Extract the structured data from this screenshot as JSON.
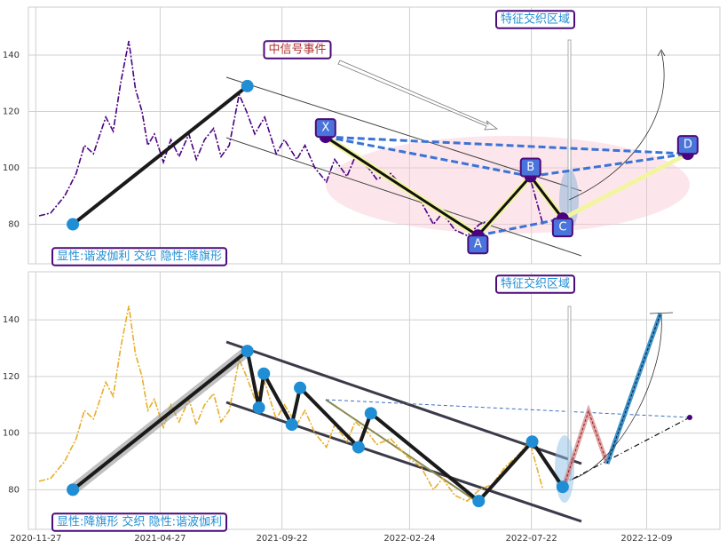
{
  "chart_data": [
    {
      "type": "line",
      "annotations": {
        "event": "中信号事件",
        "zone": "特征交织区域",
        "pattern": "显性:谐波伽利 交织 隐性:降旗形"
      },
      "x": [
        "2020-12-01",
        "2020-12-15",
        "2021-01-01",
        "2021-01-15",
        "2021-01-25",
        "2021-02-05",
        "2021-02-20",
        "2021-03-01",
        "2021-03-10",
        "2021-03-20",
        "2021-03-28",
        "2021-04-05",
        "2021-04-12",
        "2021-04-20",
        "2021-05-01",
        "2021-05-10",
        "2021-05-20",
        "2021-06-01",
        "2021-06-10",
        "2021-06-20",
        "2021-07-01",
        "2021-07-10",
        "2021-07-20",
        "2021-08-01",
        "2021-08-10",
        "2021-08-20",
        "2021-09-01",
        "2021-09-15",
        "2021-09-25",
        "2021-10-10",
        "2021-10-20",
        "2021-11-01",
        "2021-11-15",
        "2021-11-25",
        "2021-12-10",
        "2021-12-20",
        "2022-01-05",
        "2022-01-15",
        "2022-02-01",
        "2022-02-20",
        "2022-03-10",
        "2022-03-25",
        "2022-04-05",
        "2022-04-20",
        "2022-05-05",
        "2022-05-20",
        "2022-06-05",
        "2022-06-20",
        "2022-07-05",
        "2022-07-20",
        "2022-08-05"
      ],
      "series": [
        {
          "color": "#4b0082",
          "values": [
            83,
            84,
            90,
            98,
            108,
            105,
            118,
            113,
            130,
            145,
            128,
            120,
            108,
            112,
            102,
            110,
            104,
            112,
            103,
            110,
            114,
            104,
            108,
            126,
            120,
            112,
            118,
            105,
            110,
            103,
            108,
            100,
            95,
            103,
            97,
            104,
            100,
            96,
            98,
            92,
            88,
            80,
            84,
            78,
            76,
            80,
            82,
            88,
            92,
            97,
            80
          ]
        }
      ],
      "pivots": {
        "x": [
          "2021-01-11",
          "2021-08-11"
        ],
        "values": [
          80,
          129
        ]
      },
      "points": {
        "labels": [
          "X",
          "A",
          "B",
          "C",
          "D"
        ],
        "x": [
          "2021-11-14",
          "2022-05-18",
          "2022-07-21",
          "2022-08-29",
          "2023-01-28"
        ],
        "values": [
          111,
          76,
          97,
          82,
          105
        ]
      },
      "xlim": [
        "2020-11-18",
        "2023-03-08"
      ],
      "ylim": [
        66,
        157
      ],
      "yticks": [
        80,
        100,
        120,
        140
      ],
      "xticks": [
        "2020-11-27",
        "2021-04-27",
        "2021-09-22",
        "2022-02-24",
        "2022-07-22",
        "2022-12-09"
      ],
      "grid": true
    },
    {
      "type": "line",
      "annotations": {
        "zone": "特征交织区域",
        "pattern": "显性:降旗形 交织 隐性:谐波伽利"
      },
      "x": [
        "2020-12-01",
        "2020-12-15",
        "2021-01-01",
        "2021-01-15",
        "2021-01-25",
        "2021-02-05",
        "2021-02-20",
        "2021-03-01",
        "2021-03-10",
        "2021-03-20",
        "2021-03-28",
        "2021-04-05",
        "2021-04-12",
        "2021-04-20",
        "2021-05-01",
        "2021-05-10",
        "2021-05-20",
        "2021-06-01",
        "2021-06-10",
        "2021-06-20",
        "2021-07-01",
        "2021-07-10",
        "2021-07-20",
        "2021-08-01",
        "2021-08-10",
        "2021-08-20",
        "2021-09-01",
        "2021-09-15",
        "2021-09-25",
        "2021-10-10",
        "2021-10-20",
        "2021-11-01",
        "2021-11-15",
        "2021-11-25",
        "2021-12-10",
        "2021-12-20",
        "2022-01-05",
        "2022-01-15",
        "2022-02-01",
        "2022-02-20",
        "2022-03-10",
        "2022-03-25",
        "2022-04-05",
        "2022-04-20",
        "2022-05-05",
        "2022-05-20",
        "2022-06-05",
        "2022-06-20",
        "2022-07-05",
        "2022-07-20",
        "2022-08-05"
      ],
      "series": [
        {
          "color": "#e8ae2a",
          "values": [
            83,
            84,
            90,
            98,
            108,
            105,
            118,
            113,
            130,
            145,
            128,
            120,
            108,
            112,
            102,
            110,
            104,
            112,
            103,
            110,
            114,
            104,
            108,
            126,
            120,
            112,
            118,
            105,
            110,
            103,
            108,
            100,
            95,
            103,
            97,
            104,
            100,
            96,
            98,
            92,
            88,
            80,
            84,
            78,
            76,
            80,
            82,
            88,
            92,
            97,
            80
          ]
        }
      ],
      "pivots": {
        "x": [
          "2021-01-11",
          "2021-08-11",
          "2021-08-25",
          "2021-08-31",
          "2021-10-04",
          "2021-10-14",
          "2021-12-24",
          "2022-01-08",
          "2022-05-19",
          "2022-07-23",
          "2022-08-29"
        ],
        "values": [
          80,
          129,
          109,
          121,
          103,
          116,
          95,
          107,
          76,
          97,
          81
        ]
      },
      "xlim": [
        "2020-11-18",
        "2023-03-08"
      ],
      "ylim": [
        66,
        157
      ],
      "yticks": [
        80,
        100,
        120,
        140
      ],
      "xticks": [
        "2020-11-27",
        "2021-04-27",
        "2021-09-22",
        "2022-02-24",
        "2022-07-22",
        "2022-12-09"
      ],
      "grid": true
    }
  ]
}
